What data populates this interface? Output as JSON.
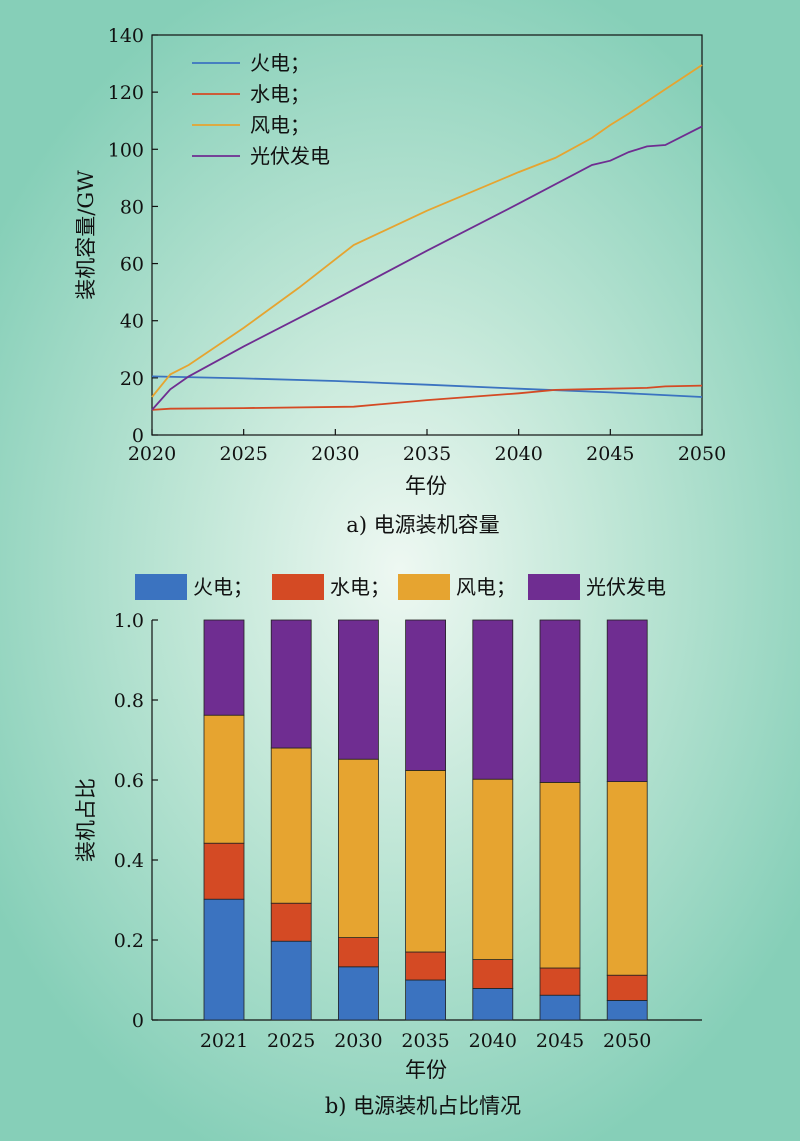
{
  "colors": {
    "thermal": "#3b73c0",
    "hydro": "#d44a24",
    "wind": "#e6a430",
    "solar": "#6f2d91"
  },
  "chart_data": [
    {
      "type": "line",
      "caption": "a) 电源装机容量",
      "xlabel": "年份",
      "ylabel": "装机容量/GW",
      "xlim": [
        2020,
        2050
      ],
      "ylim": [
        0,
        140
      ],
      "xticks": [
        "2020",
        "2025",
        "2030",
        "2035",
        "2040",
        "2045",
        "2050"
      ],
      "yticks": [
        "0",
        "20",
        "40",
        "60",
        "80",
        "100",
        "120",
        "140"
      ],
      "legend_position": "top-left",
      "series": [
        {
          "name": "火电；",
          "color_key": "thermal",
          "points": [
            [
              2020,
              20.5
            ],
            [
              2025,
              19.8
            ],
            [
              2030,
              18.9
            ],
            [
              2035,
              17.6
            ],
            [
              2040,
              16.2
            ],
            [
              2045,
              14.9
            ],
            [
              2050,
              13.3
            ]
          ]
        },
        {
          "name": "水电；",
          "color_key": "hydro",
          "points": [
            [
              2020,
              8.8
            ],
            [
              2021,
              9.2
            ],
            [
              2025,
              9.4
            ],
            [
              2031,
              9.9
            ],
            [
              2035,
              12.2
            ],
            [
              2040,
              14.6
            ],
            [
              2042,
              15.8
            ],
            [
              2045,
              16.2
            ],
            [
              2047,
              16.5
            ],
            [
              2048,
              17.0
            ],
            [
              2050,
              17.3
            ]
          ]
        },
        {
          "name": "风电；",
          "color_key": "wind",
          "points": [
            [
              2020,
              13.3
            ],
            [
              2021,
              21.2
            ],
            [
              2022,
              24.5
            ],
            [
              2025,
              37.5
            ],
            [
              2028,
              51.5
            ],
            [
              2031,
              66.5
            ],
            [
              2035,
              78.5
            ],
            [
              2040,
              92.0
            ],
            [
              2042,
              97.0
            ],
            [
              2044,
              104.0
            ],
            [
              2045,
              108.5
            ],
            [
              2046,
              112.5
            ],
            [
              2048,
              121.0
            ],
            [
              2050,
              129.5
            ]
          ]
        },
        {
          "name": "光伏发电",
          "color_key": "solar",
          "points": [
            [
              2020,
              8.8
            ],
            [
              2021,
              16.0
            ],
            [
              2022,
              20.5
            ],
            [
              2025,
              31.0
            ],
            [
              2030,
              47.5
            ],
            [
              2035,
              64.5
            ],
            [
              2040,
              81.0
            ],
            [
              2044,
              94.5
            ],
            [
              2045,
              96.0
            ],
            [
              2046,
              99.0
            ],
            [
              2047,
              101.0
            ],
            [
              2048,
              101.5
            ],
            [
              2050,
              108.0
            ]
          ]
        }
      ]
    },
    {
      "type": "bar",
      "stacked": true,
      "caption": "b) 电源装机占比情况",
      "xlabel": "年份",
      "ylabel": "装机占比",
      "ylim": [
        0,
        1.0
      ],
      "yticks": [
        "0",
        "0.2",
        "0.4",
        "0.6",
        "0.8",
        "1.0"
      ],
      "categories": [
        "2021",
        "2025",
        "2030",
        "2035",
        "2040",
        "2045",
        "2050"
      ],
      "legend_position": "top",
      "series": [
        {
          "name": "火电；",
          "color_key": "thermal",
          "values": [
            0.302,
            0.197,
            0.133,
            0.1,
            0.079,
            0.062,
            0.049
          ]
        },
        {
          "name": "水电；",
          "color_key": "hydro",
          "values": [
            0.14,
            0.095,
            0.073,
            0.07,
            0.072,
            0.068,
            0.063
          ]
        },
        {
          "name": "风电；",
          "color_key": "wind",
          "values": [
            0.32,
            0.388,
            0.446,
            0.454,
            0.451,
            0.464,
            0.484
          ]
        },
        {
          "name": "光伏发电",
          "color_key": "solar",
          "values": [
            0.238,
            0.32,
            0.348,
            0.376,
            0.398,
            0.406,
            0.404
          ]
        }
      ]
    }
  ]
}
